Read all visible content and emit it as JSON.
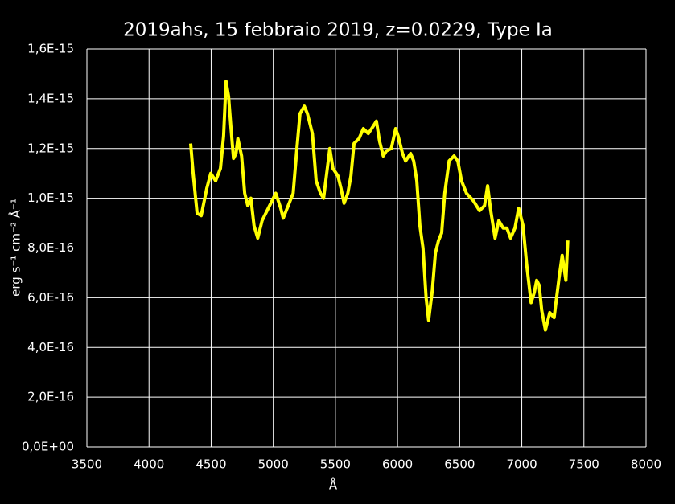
{
  "chart_data": {
    "type": "line",
    "title": "2019ahs, 15 febbraio 2019, z=0.0229, Type Ia",
    "x_label": "Å",
    "y_label": "erg s⁻¹ cm⁻² Å⁻¹",
    "xlim": [
      3500,
      8000
    ],
    "xticks": [
      3500,
      4000,
      4500,
      5000,
      5500,
      6000,
      6500,
      7000,
      7500,
      8000
    ],
    "ylim": [
      0,
      1.6e-15
    ],
    "yticks": [
      {
        "value": 0,
        "label": "0,0E+00"
      },
      {
        "value": 2e-16,
        "label": "2,0E-16"
      },
      {
        "value": 4e-16,
        "label": "4,0E-16"
      },
      {
        "value": 6e-16,
        "label": "6,0E-16"
      },
      {
        "value": 8e-16,
        "label": "8,0E-16"
      },
      {
        "value": 1e-15,
        "label": "1,0E-15"
      },
      {
        "value": 1.2e-15,
        "label": "1,2E-15"
      },
      {
        "value": 1.4e-15,
        "label": "1,4E-15"
      },
      {
        "value": 1.6e-15,
        "label": "1,6E-15"
      }
    ],
    "grid": true,
    "x": [
      4335,
      4355,
      4387,
      4420,
      4465,
      4497,
      4536,
      4575,
      4600,
      4620,
      4640,
      4660,
      4680,
      4700,
      4715,
      4745,
      4770,
      4795,
      4820,
      4845,
      4875,
      4910,
      4950,
      4990,
      5020,
      5060,
      5080,
      5120,
      5160,
      5190,
      5215,
      5250,
      5275,
      5315,
      5345,
      5380,
      5405,
      5430,
      5455,
      5480,
      5520,
      5545,
      5570,
      5600,
      5625,
      5650,
      5690,
      5725,
      5765,
      5805,
      5830,
      5855,
      5885,
      5910,
      5950,
      5985,
      6005,
      6040,
      6065,
      6105,
      6130,
      6155,
      6180,
      6205,
      6230,
      6250,
      6280,
      6305,
      6330,
      6355,
      6380,
      6415,
      6455,
      6485,
      6515,
      6555,
      6610,
      6660,
      6700,
      6725,
      6750,
      6785,
      6815,
      6850,
      6880,
      6910,
      6945,
      6975,
      7010,
      7040,
      7075,
      7100,
      7120,
      7140,
      7160,
      7190,
      7225,
      7260,
      7300,
      7325,
      7355,
      7370
    ],
    "series": [
      {
        "color": "#ffff00",
        "values": [
          1.22e-15,
          1.1e-15,
          9.4e-16,
          9.3e-16,
          1.04e-15,
          1.1e-15,
          1.07e-15,
          1.12e-15,
          1.25e-15,
          1.47e-15,
          1.41e-15,
          1.28e-15,
          1.16e-15,
          1.18e-15,
          1.24e-15,
          1.17e-15,
          1.02e-15,
          9.7e-16,
          1e-15,
          8.9e-16,
          8.4e-16,
          9.1e-16,
          9.5e-16,
          9.9e-16,
          1.02e-15,
          9.6e-16,
          9.2e-16,
          9.7e-16,
          1.02e-15,
          1.2e-15,
          1.34e-15,
          1.37e-15,
          1.34e-15,
          1.26e-15,
          1.07e-15,
          1.02e-15,
          1e-15,
          1.1e-15,
          1.2e-15,
          1.12e-15,
          1.09e-15,
          1.04e-15,
          9.8e-16,
          1.02e-15,
          1.09e-15,
          1.22e-15,
          1.24e-15,
          1.28e-15,
          1.26e-15,
          1.29e-15,
          1.31e-15,
          1.23e-15,
          1.17e-15,
          1.19e-15,
          1.2e-15,
          1.28e-15,
          1.25e-15,
          1.18e-15,
          1.15e-15,
          1.18e-15,
          1.15e-15,
          1.07e-15,
          8.9e-16,
          8e-16,
          6e-16,
          5.1e-16,
          6.3e-16,
          7.8e-16,
          8.3e-16,
          8.6e-16,
          1.02e-15,
          1.15e-15,
          1.17e-15,
          1.15e-15,
          1.07e-15,
          1.02e-15,
          9.9e-16,
          9.5e-16,
          9.7e-16,
          1.05e-15,
          9.5e-16,
          8.4e-16,
          9.1e-16,
          8.8e-16,
          8.8e-16,
          8.4e-16,
          8.8e-16,
          9.6e-16,
          8.9e-16,
          7.3e-16,
          5.8e-16,
          6.2e-16,
          6.7e-16,
          6.5e-16,
          5.5e-16,
          4.7e-16,
          5.4e-16,
          5.2e-16,
          6.8e-16,
          7.7e-16,
          6.7e-16,
          8.3e-16
        ]
      }
    ]
  }
}
